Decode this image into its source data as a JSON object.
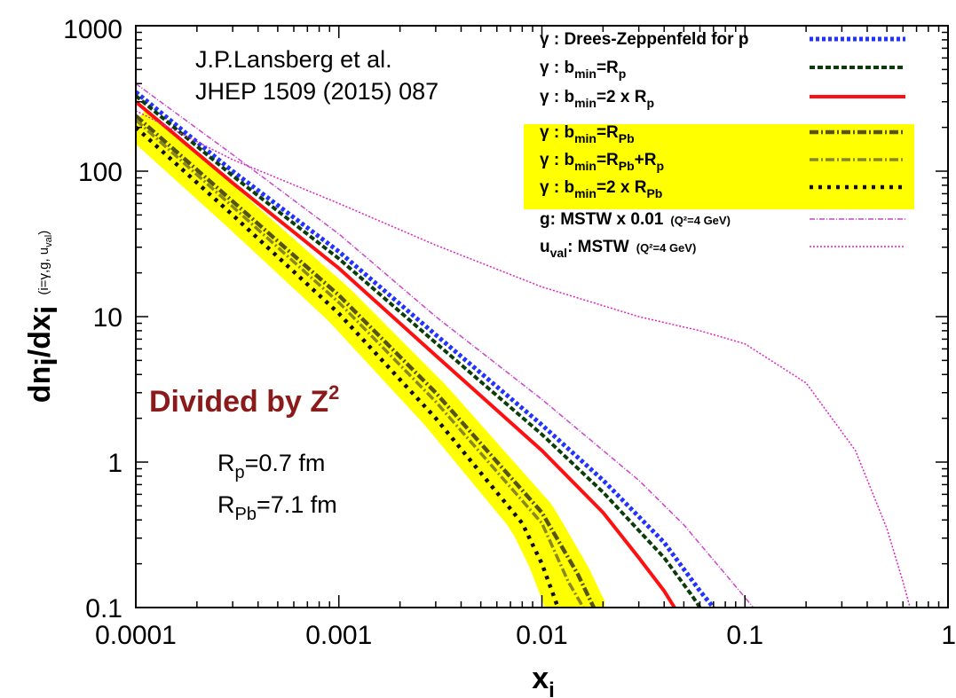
{
  "chart_data": {
    "type": "line",
    "title": "",
    "xscale": "log",
    "yscale": "log",
    "xlim": [
      0.0001,
      1
    ],
    "ylim": [
      0.1,
      1000
    ],
    "xlabel": {
      "main": "x",
      "sub": "i"
    },
    "ylabel": {
      "main": "dn",
      "sub1": "i",
      "mid": "/dx",
      "sub2": "i",
      "extra": "(i=γ,g, u",
      "extra_sub": "val",
      "extra_end": ")"
    },
    "x_ticks": [
      {
        "value": 0.0001,
        "label": "0.0001"
      },
      {
        "value": 0.001,
        "label": "0.001"
      },
      {
        "value": 0.01,
        "label": "0.01"
      },
      {
        "value": 0.1,
        "label": "0.1"
      },
      {
        "value": 1,
        "label": "1"
      }
    ],
    "y_ticks": [
      {
        "value": 0.1,
        "label": "0.1"
      },
      {
        "value": 1,
        "label": "1"
      },
      {
        "value": 10,
        "label": "10"
      },
      {
        "value": 100,
        "label": "100"
      },
      {
        "value": 1000,
        "label": "1000"
      }
    ],
    "legend_position": "top-right",
    "legend_highlight_color": "#ffff00",
    "band": {
      "color": "#ffff00",
      "lower_series": 5,
      "upper_series": 3
    },
    "series": [
      {
        "label": {
          "text": "γ : Drees-Zeppenfeld for p",
          "sub": "",
          "tail": "",
          "sub2": ""
        },
        "color": "#2233ff",
        "dash": "4 3",
        "width": 5,
        "x": [
          0.0001,
          0.0003,
          0.001,
          0.003,
          0.01,
          0.02,
          0.04,
          0.06,
          0.07
        ],
        "y": [
          350,
          100,
          28,
          7.5,
          1.8,
          0.75,
          0.28,
          0.13,
          0.1
        ]
      },
      {
        "label": {
          "text": "γ : b",
          "sub": "min",
          "tail": "=R",
          "sub2": "p"
        },
        "color": "#0b3d0b",
        "dash": "6 3",
        "width": 4,
        "x": [
          0.0001,
          0.0003,
          0.001,
          0.003,
          0.01,
          0.02,
          0.04,
          0.055,
          0.06
        ],
        "y": [
          330,
          93,
          25,
          6.6,
          1.55,
          0.62,
          0.22,
          0.12,
          0.1
        ]
      },
      {
        "label": {
          "text": "γ : b",
          "sub": "min",
          "tail": "=2 x R",
          "sub2": "p"
        },
        "color": "#ff1010",
        "dash": "",
        "width": 4,
        "x": [
          0.0001,
          0.0003,
          0.001,
          0.003,
          0.01,
          0.02,
          0.03,
          0.04,
          0.045
        ],
        "y": [
          300,
          83,
          21.5,
          5.4,
          1.2,
          0.45,
          0.22,
          0.13,
          0.1
        ]
      },
      {
        "label": {
          "text": "γ : b",
          "sub": "min",
          "tail": "=R",
          "sub2": "Pb"
        },
        "color": "#555511",
        "dash": "10 3 2 3",
        "width": 4.5,
        "x": [
          0.0001,
          0.0003,
          0.001,
          0.003,
          0.01,
          0.015,
          0.018
        ],
        "y": [
          240,
          62,
          14,
          3,
          0.45,
          0.17,
          0.1
        ]
      },
      {
        "label": {
          "text": "γ : b",
          "sub": "min",
          "tail": "=R",
          "sub2": "Pb",
          "tail2": "+R",
          "sub3": "p"
        },
        "color": "#888822",
        "dash": "10 3 2 3",
        "width": 3.5,
        "x": [
          0.0001,
          0.0003,
          0.001,
          0.003,
          0.01,
          0.0135,
          0.016
        ],
        "y": [
          225,
          57,
          12.5,
          2.6,
          0.38,
          0.15,
          0.1
        ]
      },
      {
        "label": {
          "text": "γ : b",
          "sub": "min",
          "tail": "=2 x R",
          "sub2": "Pb"
        },
        "color": "#111111",
        "dash": "4 6",
        "width": 4.5,
        "x": [
          0.0001,
          0.0003,
          0.001,
          0.003,
          0.008,
          0.01,
          0.012
        ],
        "y": [
          200,
          50,
          10.5,
          2,
          0.38,
          0.2,
          0.1
        ]
      },
      {
        "label": {
          "text": "g: MSTW x 0.01",
          "sub": "",
          "tail": "",
          "sub2": "",
          "note": "(Q²=4 GeV)"
        },
        "color": "#cc44cc",
        "dash": "6 2 1 2",
        "width": 1.5,
        "x": [
          0.0001,
          0.0003,
          0.001,
          0.003,
          0.01,
          0.03,
          0.05,
          0.08,
          0.11
        ],
        "y": [
          400,
          130,
          37,
          10,
          2.7,
          0.75,
          0.37,
          0.17,
          0.1
        ]
      },
      {
        "label": {
          "text": "u",
          "sub": "val",
          "tail": ": MSTW",
          "sub2": "",
          "note": "(Q²=4 GeV)"
        },
        "color": "#e020c0",
        "dash": "2 2",
        "width": 1.5,
        "x": [
          0.0001,
          0.0003,
          0.001,
          0.003,
          0.01,
          0.03,
          0.06,
          0.1,
          0.2,
          0.35,
          0.5,
          0.6,
          0.65
        ],
        "y": [
          260,
          120,
          60,
          31,
          16,
          10,
          8,
          6.5,
          3.5,
          1.2,
          0.35,
          0.15,
          0.1
        ]
      }
    ],
    "annotations": {
      "reference_line1": "J.P.Lansberg et al.",
      "reference_line2": "JHEP 1509 (2015) 087",
      "divided_text": "Divided by Z",
      "divided_sup": "2",
      "divided_color": "#8b1a1a",
      "rp": {
        "main": "R",
        "sub": "p",
        "value": "=0.7 fm"
      },
      "rpb": {
        "main": "R",
        "sub": "Pb",
        "value": "=7.1 fm"
      }
    }
  }
}
